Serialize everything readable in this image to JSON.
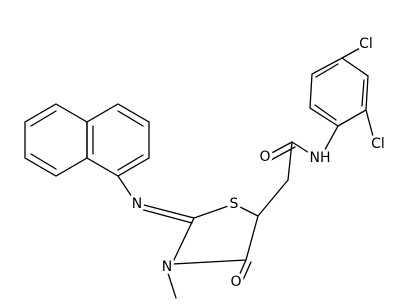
{
  "atoms": [
    {
      "label": "Cl"
    },
    {
      "label": "Cl"
    },
    {
      "label": "O"
    },
    {
      "label": "NH"
    },
    {
      "label": "S"
    },
    {
      "label": "N"
    },
    {
      "label": "N"
    },
    {
      "label": "O"
    }
  ]
}
